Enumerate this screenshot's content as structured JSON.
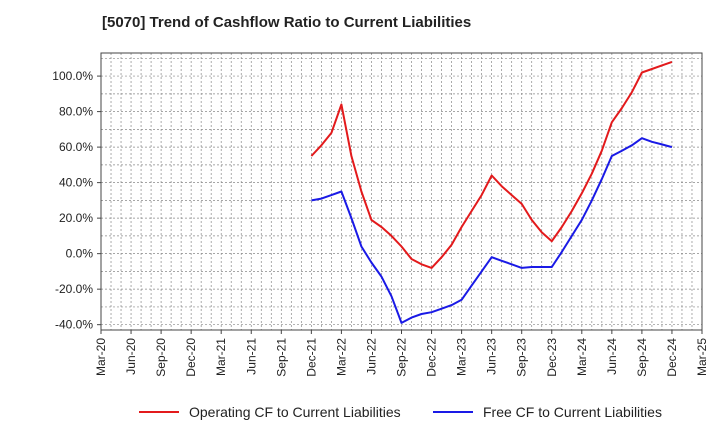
{
  "chart_data": {
    "type": "line",
    "title": "[5070]  Trend of Cashflow Ratio to Current Liabilities",
    "xlabel": "",
    "ylabel": "",
    "x_ticks": [
      "Mar-20",
      "Jun-20",
      "Sep-20",
      "Dec-20",
      "Mar-21",
      "Jun-21",
      "Sep-21",
      "Dec-21",
      "Mar-22",
      "Jun-22",
      "Sep-22",
      "Dec-22",
      "Mar-23",
      "Jun-23",
      "Sep-23",
      "Dec-23",
      "Mar-24",
      "Jun-24",
      "Sep-24",
      "Dec-24",
      "Mar-25"
    ],
    "y_ticks": [
      "100.0%",
      "80.0%",
      "60.0%",
      "40.0%",
      "20.0%",
      "0.0%",
      "-20.0%",
      "-40.0%"
    ],
    "y_tick_values": [
      100,
      80,
      60,
      40,
      20,
      0,
      -20,
      -40
    ],
    "ylim": [
      -43,
      113
    ],
    "grid": true,
    "legend_position": "bottom",
    "series": [
      {
        "name": "Operating CF to Current Liabilities",
        "color": "#e31a1c",
        "points": [
          [
            "Dec-21",
            55
          ],
          [
            "Jan-22",
            61
          ],
          [
            "Feb-22",
            68
          ],
          [
            "Mar-22",
            84
          ],
          [
            "Apr-22",
            55
          ],
          [
            "May-22",
            35
          ],
          [
            "Jun-22",
            19
          ],
          [
            "Jul-22",
            15
          ],
          [
            "Aug-22",
            10
          ],
          [
            "Sep-22",
            4
          ],
          [
            "Oct-22",
            -3
          ],
          [
            "Nov-22",
            -6
          ],
          [
            "Dec-22",
            -8
          ],
          [
            "Jan-23",
            -2
          ],
          [
            "Feb-23",
            5
          ],
          [
            "Mar-23",
            15
          ],
          [
            "Apr-23",
            24
          ],
          [
            "May-23",
            33
          ],
          [
            "Jun-23",
            44
          ],
          [
            "Jul-23",
            38
          ],
          [
            "Aug-23",
            33
          ],
          [
            "Sep-23",
            28
          ],
          [
            "Oct-23",
            19
          ],
          [
            "Nov-23",
            12
          ],
          [
            "Dec-23",
            7
          ],
          [
            "Jan-24",
            15
          ],
          [
            "Feb-24",
            24
          ],
          [
            "Mar-24",
            34
          ],
          [
            "Apr-24",
            45
          ],
          [
            "May-24",
            58
          ],
          [
            "Jun-24",
            74
          ],
          [
            "Jul-24",
            82
          ],
          [
            "Aug-24",
            91
          ],
          [
            "Sep-24",
            102
          ],
          [
            "Oct-24",
            104
          ],
          [
            "Nov-24",
            106
          ],
          [
            "Dec-24",
            108
          ]
        ]
      },
      {
        "name": "Free CF to Current Liabilities",
        "color": "#1a1ae6",
        "points": [
          [
            "Dec-21",
            30
          ],
          [
            "Jan-22",
            31
          ],
          [
            "Feb-22",
            33
          ],
          [
            "Mar-22",
            35
          ],
          [
            "Apr-22",
            20
          ],
          [
            "May-22",
            4
          ],
          [
            "Jun-22",
            -5
          ],
          [
            "Jul-22",
            -13
          ],
          [
            "Aug-22",
            -24
          ],
          [
            "Sep-22",
            -39
          ],
          [
            "Oct-22",
            -36
          ],
          [
            "Nov-22",
            -34
          ],
          [
            "Dec-22",
            -33
          ],
          [
            "Jan-23",
            -31
          ],
          [
            "Feb-23",
            -29
          ],
          [
            "Mar-23",
            -26
          ],
          [
            "Apr-23",
            -18
          ],
          [
            "May-23",
            -10
          ],
          [
            "Jun-23",
            -2
          ],
          [
            "Jul-23",
            -4
          ],
          [
            "Aug-23",
            -6
          ],
          [
            "Sep-23",
            -8
          ],
          [
            "Oct-23",
            -7.5
          ],
          [
            "Nov-23",
            -7.5
          ],
          [
            "Dec-23",
            -7.5
          ],
          [
            "Jan-24",
            1
          ],
          [
            "Feb-24",
            10
          ],
          [
            "Mar-24",
            19
          ],
          [
            "Apr-24",
            30
          ],
          [
            "May-24",
            42
          ],
          [
            "Jun-24",
            55
          ],
          [
            "Jul-24",
            58
          ],
          [
            "Aug-24",
            61
          ],
          [
            "Sep-24",
            65
          ],
          [
            "Oct-24",
            63
          ],
          [
            "Nov-24",
            61.5
          ],
          [
            "Dec-24",
            60
          ]
        ]
      }
    ]
  }
}
